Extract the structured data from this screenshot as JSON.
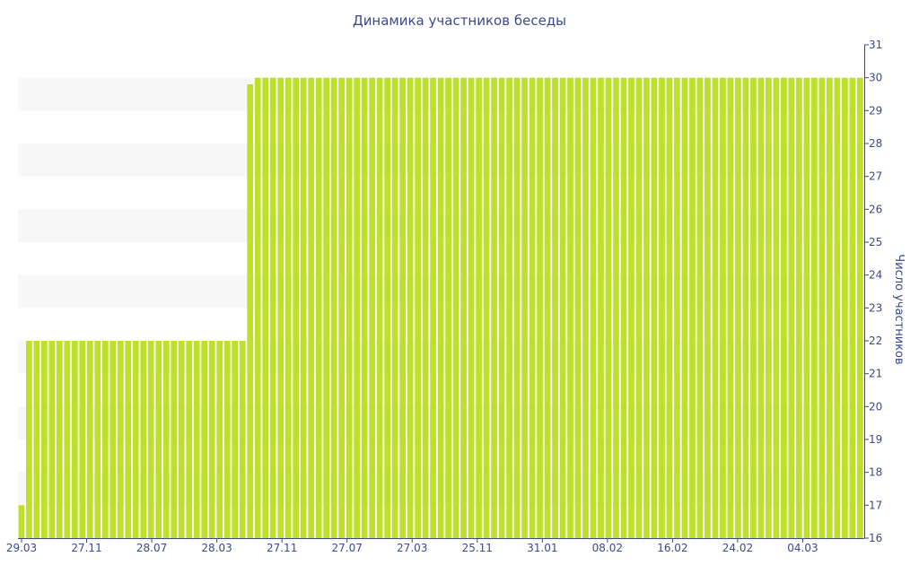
{
  "chart_data": {
    "type": "bar",
    "title": "Динамика участников беседы",
    "xlabel": "",
    "ylabel": "Число участников",
    "ylim": [
      16,
      31
    ],
    "yticks": [
      16,
      17,
      18,
      19,
      20,
      21,
      22,
      23,
      24,
      25,
      26,
      27,
      28,
      29,
      30,
      31
    ],
    "y_axis_side": "right",
    "grid": "alternating horizontal bands",
    "legend": "none",
    "bar_color": "#bfe02b",
    "band_color": "#f7f7f7",
    "axis_color": "#3a4a8c",
    "x_tick_labels": [
      "29.03",
      "27.11",
      "28.07",
      "28.03",
      "27.11",
      "27.07",
      "27.03",
      "25.11",
      "31.01",
      "08.02",
      "16.02",
      "24.02",
      "04.03"
    ],
    "series": [
      {
        "values": [
          17,
          22,
          22,
          22,
          22,
          22,
          22,
          22,
          22,
          22,
          22,
          22,
          22,
          22,
          22,
          22,
          22,
          22,
          22,
          22,
          22,
          22,
          22,
          22,
          22,
          22,
          22,
          22,
          22,
          22,
          29.8,
          30,
          30,
          30,
          30,
          30,
          30,
          30,
          30,
          30,
          30,
          30,
          30,
          30,
          30,
          30,
          30,
          30,
          30,
          30,
          30,
          30,
          30,
          30,
          30,
          30,
          30,
          30,
          30,
          30,
          30,
          30,
          30,
          30,
          30,
          30,
          30,
          30,
          30,
          30,
          30,
          30,
          30,
          30,
          30,
          30,
          30,
          30,
          30,
          30,
          30,
          30,
          30,
          30,
          30,
          30,
          30,
          30,
          30,
          30,
          30,
          30,
          30,
          30,
          30,
          30,
          30,
          30,
          30,
          30,
          30,
          30,
          30,
          30,
          30,
          30,
          30,
          30,
          30,
          30,
          30
        ]
      }
    ]
  }
}
